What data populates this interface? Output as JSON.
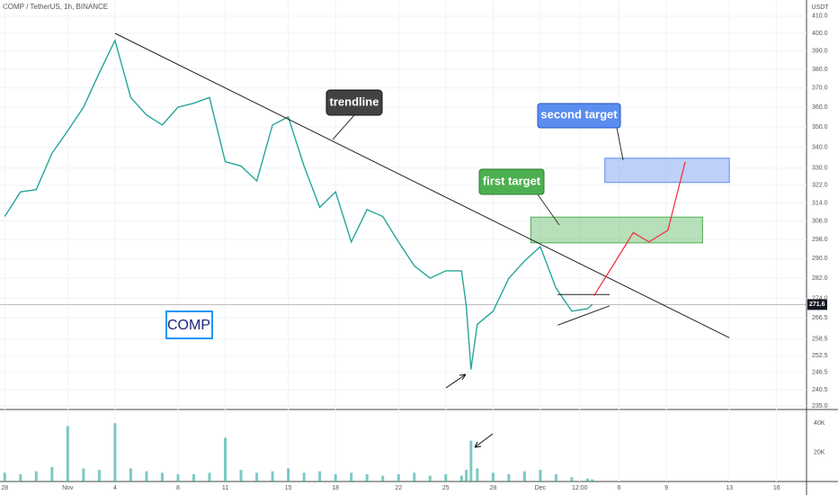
{
  "chart_data": {
    "type": "line",
    "title": "COMP / TetherUS, 1h, BINANCE",
    "y_unit": "USDT",
    "log_scale": true,
    "grid": true,
    "color": "#26a69a",
    "x": [
      0,
      1,
      2,
      3,
      4,
      5,
      6,
      7,
      8,
      9,
      10,
      11,
      12,
      13,
      14,
      15,
      16,
      17,
      18,
      19,
      20,
      21,
      22,
      23,
      24,
      25,
      26,
      27,
      28,
      29,
      29.3,
      29.6,
      30,
      31,
      32,
      33,
      34,
      35,
      36,
      37,
      37.3
    ],
    "values": [
      308,
      319,
      320,
      337,
      348,
      360,
      378,
      396,
      365,
      356,
      351,
      360,
      362,
      365,
      333,
      331,
      324,
      351,
      355,
      331,
      312,
      319,
      297,
      311,
      308,
      297,
      287,
      282,
      285,
      285,
      271,
      247.6,
      264,
      269,
      282,
      289,
      295,
      278,
      269,
      270,
      271.6
    ],
    "volume": {
      "color": "#26a69a",
      "values": [
        6000,
        5000,
        7000,
        10000,
        38000,
        9000,
        8000,
        40000,
        9000,
        7000,
        6000,
        5000,
        5000,
        6000,
        30000,
        8000,
        6000,
        7000,
        9000,
        6000,
        7000,
        5000,
        6000,
        5000,
        4000,
        5000,
        6000,
        4000,
        5000,
        4000,
        8000,
        28000,
        9000,
        6000,
        5000,
        7000,
        8000,
        5000,
        3000,
        2000,
        1500
      ],
      "ylim": [
        0,
        49400
      ],
      "yticks": [
        {
          "value": 20000,
          "label": "20K"
        },
        {
          "value": 40000,
          "label": "40K"
        }
      ]
    },
    "current_price": 271.6,
    "xlim": [
      -0.3,
      50.9
    ],
    "ylim": [
      233.8,
      419.5
    ],
    "yticks": [
      {
        "value": 410,
        "label": "410.0"
      },
      {
        "value": 400,
        "label": "400.0"
      },
      {
        "value": 390,
        "label": "390.0"
      },
      {
        "value": 380,
        "label": "380.0"
      },
      {
        "value": 370,
        "label": "370.0"
      },
      {
        "value": 360,
        "label": "360.0"
      },
      {
        "value": 350,
        "label": "350.0"
      },
      {
        "value": 340,
        "label": "340.0"
      },
      {
        "value": 330,
        "label": "330.0"
      },
      {
        "value": 322,
        "label": "322.0"
      },
      {
        "value": 314,
        "label": "314.0"
      },
      {
        "value": 306,
        "label": "306.0"
      },
      {
        "value": 298,
        "label": "298.0"
      },
      {
        "value": 290,
        "label": "290.0"
      },
      {
        "value": 282,
        "label": "282.0"
      },
      {
        "value": 274,
        "label": "274.0"
      },
      266.5,
      258.5,
      252.5,
      246.5,
      240.5,
      {
        "value": 235,
        "label": "235.0"
      }
    ],
    "xticks": [
      {
        "value": 0,
        "label": "28"
      },
      {
        "value": 4,
        "label": "Nov"
      },
      {
        "value": 7,
        "label": "4"
      },
      {
        "value": 11,
        "label": "8"
      },
      {
        "value": 14,
        "label": "11"
      },
      {
        "value": 18,
        "label": "15"
      },
      {
        "value": 21,
        "label": "18"
      },
      {
        "value": 25,
        "label": "22"
      },
      {
        "value": 28,
        "label": "25"
      },
      {
        "value": 31,
        "label": "28"
      },
      {
        "value": 34,
        "label": "Dec"
      },
      {
        "value": 36.5,
        "label": "12:00"
      },
      {
        "value": 39,
        "label": "6"
      },
      {
        "value": 42,
        "label": "9"
      },
      {
        "value": 46,
        "label": "13"
      },
      {
        "value": 49,
        "label": "16"
      }
    ],
    "trendline": {
      "label": "trendline",
      "x": [
        7,
        46
      ],
      "values": [
        400,
        259
      ]
    },
    "zones": [
      {
        "label": "first target",
        "color": "#4caf50",
        "x": [
          33.4,
          44.3
        ],
        "values": [
          296.6,
          307.7
        ]
      },
      {
        "label": "second target",
        "color": "#5b8def",
        "x": [
          38.1,
          46
        ],
        "values": [
          323.3,
          334.7
        ]
      }
    ],
    "pattern_lines": [
      {
        "x": [
          35.1,
          38.4
        ],
        "values": [
          275.5,
          275.5
        ]
      },
      {
        "x": [
          35.1,
          38.4
        ],
        "values": [
          263.7,
          271.1
        ]
      }
    ],
    "projection": {
      "color": "#f23645",
      "x": [
        37.4,
        38.6,
        39.9,
        40.9,
        42.1,
        43.2
      ],
      "values": [
        275,
        287,
        301,
        297,
        302,
        333
      ]
    },
    "symbol_label": "COMP"
  }
}
